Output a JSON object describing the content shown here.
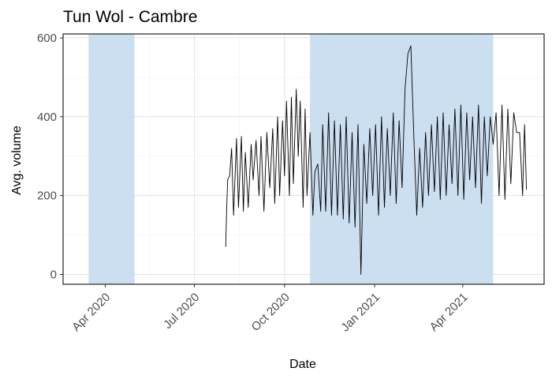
{
  "chart_data": {
    "type": "line",
    "title": "Tun Wol - Cambre",
    "xlabel": "Date",
    "ylabel": "Avg. volume",
    "xlim": [
      "2020-02-18",
      "2021-06-23"
    ],
    "ylim": [
      -25,
      610
    ],
    "x_ticks": [
      {
        "date": "2020-04-01",
        "label": "Apr 2020"
      },
      {
        "date": "2020-07-01",
        "label": "Jul 2020"
      },
      {
        "date": "2020-10-01",
        "label": "Oct 2020"
      },
      {
        "date": "2021-01-01",
        "label": "Jan 2021"
      },
      {
        "date": "2021-04-01",
        "label": "Apr 2021"
      }
    ],
    "y_ticks": [
      0,
      200,
      400,
      600
    ],
    "grid": true,
    "highlight_colour": "#c6dbef",
    "line_colour": "#000000",
    "shaded_periods": [
      {
        "start": "2020-03-15",
        "end": "2020-05-01"
      },
      {
        "start": "2020-10-27",
        "end": "2021-05-02"
      }
    ],
    "series": [
      {
        "x": [
          "2020-08-02",
          "2020-08-03",
          "2020-08-04",
          "2020-08-06",
          "2020-08-08",
          "2020-08-10",
          "2020-08-13",
          "2020-08-15",
          "2020-08-18",
          "2020-08-20",
          "2020-08-22",
          "2020-08-25",
          "2020-08-28",
          "2020-08-30",
          "2020-09-02",
          "2020-09-05",
          "2020-09-07",
          "2020-09-10",
          "2020-09-13",
          "2020-09-16",
          "2020-09-19",
          "2020-09-21",
          "2020-09-24",
          "2020-09-26",
          "2020-09-29",
          "2020-10-01",
          "2020-10-03",
          "2020-10-06",
          "2020-10-08",
          "2020-10-10",
          "2020-10-13",
          "2020-10-15",
          "2020-10-17",
          "2020-10-20",
          "2020-10-22",
          "2020-10-24",
          "2020-10-27",
          "2020-10-30",
          "2020-11-01",
          "2020-11-04",
          "2020-11-07",
          "2020-11-09",
          "2020-11-12",
          "2020-11-15",
          "2020-11-18",
          "2020-11-21",
          "2020-11-24",
          "2020-11-27",
          "2020-11-30",
          "2020-12-03",
          "2020-12-06",
          "2020-12-09",
          "2020-12-12",
          "2020-12-15",
          "2020-12-18",
          "2020-12-21",
          "2020-12-24",
          "2020-12-27",
          "2020-12-30",
          "2021-01-02",
          "2021-01-05",
          "2021-01-08",
          "2021-01-11",
          "2021-01-14",
          "2021-01-17",
          "2021-01-20",
          "2021-01-23",
          "2021-01-26",
          "2021-01-29",
          "2021-02-01",
          "2021-02-04",
          "2021-02-07",
          "2021-02-10",
          "2021-02-13",
          "2021-02-16",
          "2021-02-19",
          "2021-02-22",
          "2021-02-25",
          "2021-02-28",
          "2021-03-03",
          "2021-03-06",
          "2021-03-09",
          "2021-03-12",
          "2021-03-15",
          "2021-03-18",
          "2021-03-21",
          "2021-03-24",
          "2021-03-27",
          "2021-03-30",
          "2021-04-02",
          "2021-04-05",
          "2021-04-08",
          "2021-04-11",
          "2021-04-14",
          "2021-04-17",
          "2021-04-20",
          "2021-04-23",
          "2021-04-26",
          "2021-04-29",
          "2021-05-02",
          "2021-05-05",
          "2021-05-08",
          "2021-05-11",
          "2021-05-14",
          "2021-05-17",
          "2021-05-20",
          "2021-05-23",
          "2021-05-26",
          "2021-05-29",
          "2021-06-01",
          "2021-06-03",
          "2021-06-05"
        ],
        "y": [
          70,
          170,
          240,
          250,
          320,
          150,
          345,
          170,
          350,
          160,
          310,
          170,
          330,
          240,
          340,
          200,
          350,
          160,
          360,
          220,
          370,
          180,
          400,
          200,
          390,
          250,
          440,
          200,
          450,
          230,
          470,
          300,
          440,
          170,
          420,
          200,
          360,
          150,
          260,
          280,
          160,
          380,
          160,
          410,
          150,
          390,
          150,
          380,
          140,
          400,
          130,
          360,
          120,
          380,
          0,
          330,
          180,
          370,
          200,
          380,
          150,
          400,
          170,
          370,
          200,
          410,
          180,
          390,
          220,
          470,
          560,
          580,
          350,
          150,
          320,
          170,
          360,
          200,
          380,
          210,
          400,
          190,
          410,
          200,
          380,
          230,
          420,
          200,
          430,
          190,
          410,
          240,
          400,
          220,
          430,
          180,
          400,
          250,
          400,
          330,
          410,
          200,
          430,
          190,
          420,
          230,
          410,
          360,
          360,
          200,
          380,
          215
        ]
      }
    ]
  }
}
